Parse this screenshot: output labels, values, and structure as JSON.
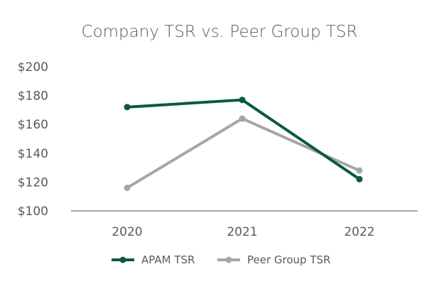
{
  "chart_data": {
    "type": "line",
    "title": "Company TSR vs. Peer Group TSR",
    "categories": [
      "2020",
      "2021",
      "2022"
    ],
    "ylim": [
      100,
      200
    ],
    "yticks": [
      100,
      120,
      140,
      160,
      180,
      200
    ],
    "ytick_labels": [
      "$100",
      "$120",
      "$140",
      "$160",
      "$180",
      "$200"
    ],
    "xlabel": "",
    "ylabel": "",
    "grid": false,
    "legend_position": "bottom-center",
    "series": [
      {
        "name": "APAM TSR",
        "color": "#0b5a3e",
        "values": [
          172,
          177,
          122
        ]
      },
      {
        "name": "Peer Group TSR",
        "color": "#a6a6a6",
        "values": [
          116,
          164,
          128
        ]
      }
    ]
  }
}
